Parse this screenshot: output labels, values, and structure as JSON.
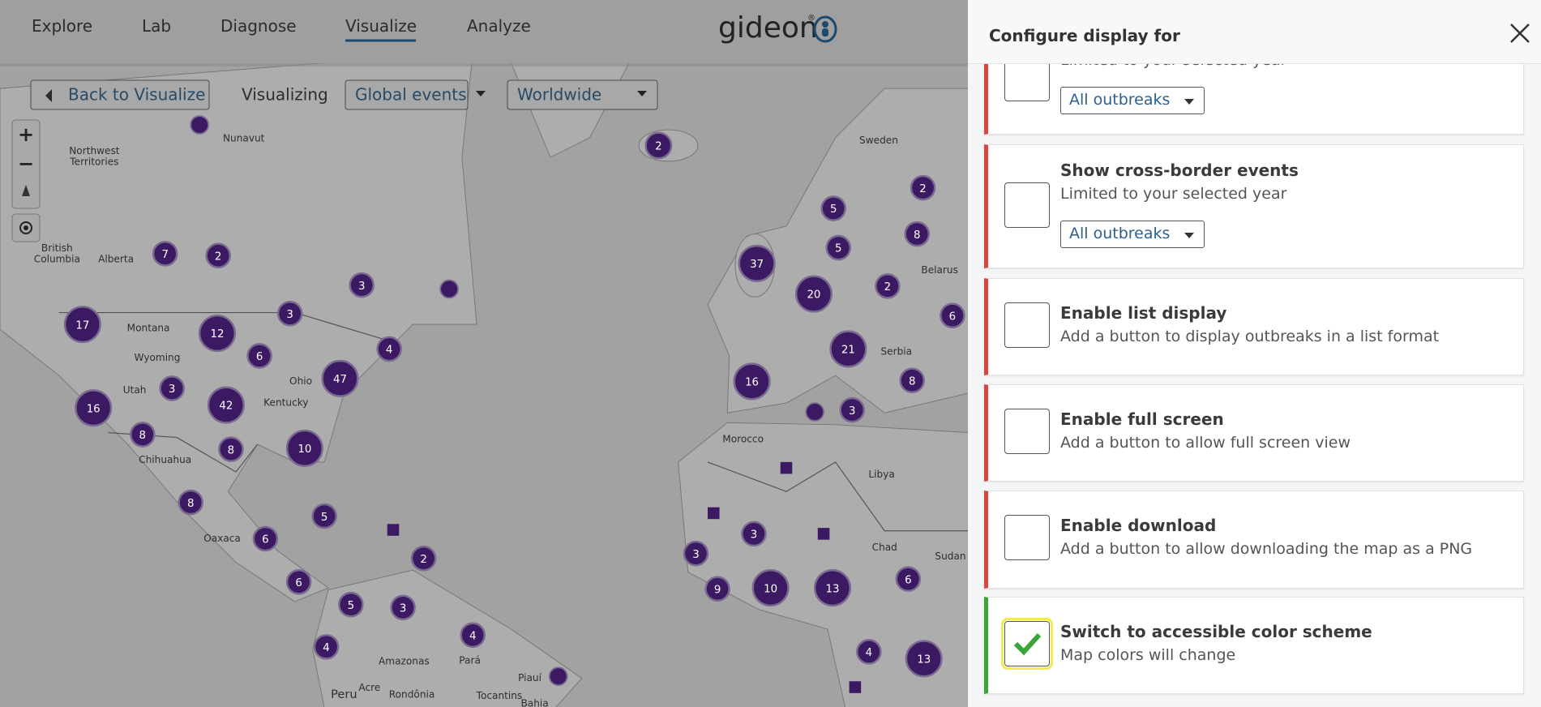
{
  "nav": {
    "links": [
      "Explore",
      "Lab",
      "Diagnose",
      "Visualize",
      "Analyze"
    ],
    "logo": "gideon",
    "logo_mark": "®"
  },
  "toolbar": {
    "back": "Back to Visualize",
    "visualizing": "Visualizing",
    "event_select": "Global events",
    "region_select": "Worldwide"
  },
  "map": {
    "zoom_in": "+",
    "zoom_out": "−",
    "clusters": [
      "2",
      "7",
      "2",
      "3",
      "17",
      "12",
      "3",
      "6",
      "4",
      "47",
      "3",
      "42",
      "16",
      "8",
      "8",
      "10",
      "8",
      "5",
      "2",
      "6",
      "6",
      "5",
      "3",
      "4",
      "4",
      "5",
      "2",
      "8",
      "5",
      "37",
      "20",
      "2",
      "6",
      "21",
      "8",
      "16",
      "3",
      "3",
      "3",
      "9",
      "10",
      "13",
      "6",
      "4",
      "13"
    ],
    "places": [
      "Nunavut",
      "Northwest",
      "Territories",
      "British",
      "Columbia",
      "Alberta",
      "Montana",
      "Wyoming",
      "Utah",
      "Ohio",
      "Kentucky",
      "Chihuahua",
      "Oaxaca",
      "Sweden",
      "Belarus",
      "Serbia",
      "Morocco",
      "Libya",
      "Chad",
      "Sudan",
      "Amazonas",
      "Pará",
      "Piauí",
      "Peru",
      "Acre",
      "Rondônia",
      "Tocantins",
      "Bahia"
    ]
  },
  "panel": {
    "title": "Configure display for",
    "options": [
      {
        "subtitle": "Limited to your selected year",
        "select": "All outbreaks",
        "checked": false
      },
      {
        "title": "Show cross-border events",
        "subtitle": "Limited to your selected year",
        "select": "All outbreaks",
        "checked": false
      },
      {
        "title": "Enable list display",
        "subtitle": "Add a button to display outbreaks in a list format",
        "checked": false
      },
      {
        "title": "Enable full screen",
        "subtitle": "Add a button to allow full screen view",
        "checked": false
      },
      {
        "title": "Enable download",
        "subtitle": "Add a button to allow downloading the map as a PNG",
        "checked": false
      },
      {
        "title": "Switch to accessible color scheme",
        "subtitle": "Map colors will change",
        "checked": true
      }
    ]
  }
}
